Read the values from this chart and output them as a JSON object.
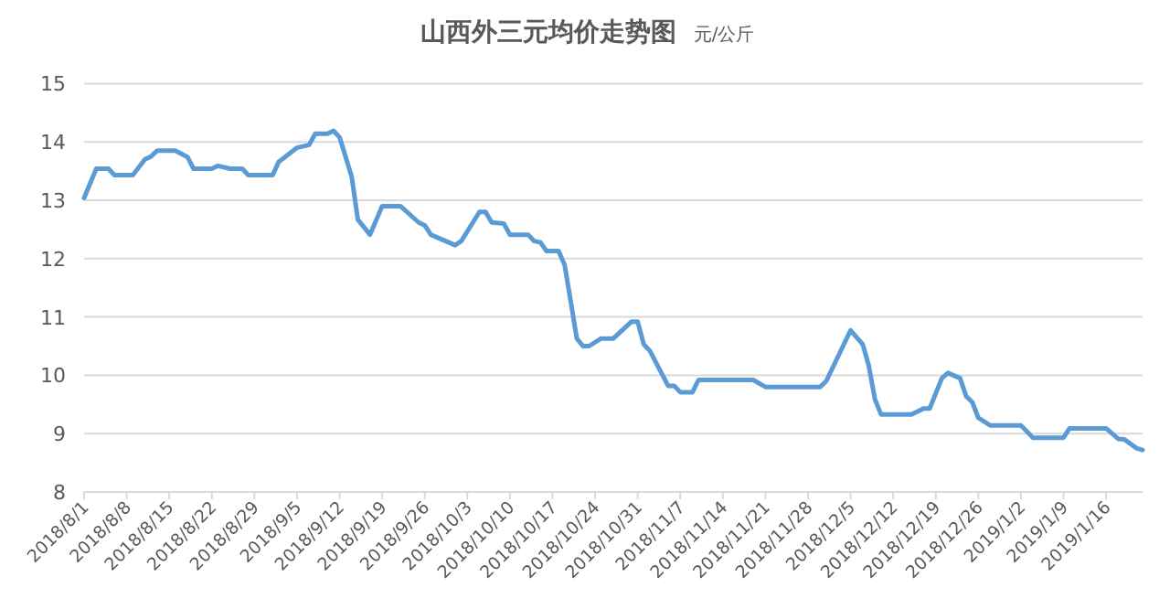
{
  "chart_data": {
    "type": "line",
    "title": "山西外三元均价走势图",
    "subtitle": "元/公斤",
    "color": "#5b9bd5",
    "grid": "y",
    "xlim": [
      "2018-08-01",
      "2019-01-22"
    ],
    "ylim": [
      8,
      15
    ],
    "yticks": [
      8,
      9,
      10,
      11,
      12,
      13,
      14,
      15
    ],
    "xticks": [
      {
        "value": "2018-08-01",
        "label": "2018/8/1"
      },
      {
        "value": "2018-08-08",
        "label": "2018/8/8"
      },
      {
        "value": "2018-08-15",
        "label": "2018/8/15"
      },
      {
        "value": "2018-08-22",
        "label": "2018/8/22"
      },
      {
        "value": "2018-08-29",
        "label": "2018/8/29"
      },
      {
        "value": "2018-09-05",
        "label": "2018/9/5"
      },
      {
        "value": "2018-09-12",
        "label": "2018/9/12"
      },
      {
        "value": "2018-09-19",
        "label": "2018/9/19"
      },
      {
        "value": "2018-09-26",
        "label": "2018/9/26"
      },
      {
        "value": "2018-10-03",
        "label": "2018/10/3"
      },
      {
        "value": "2018-10-10",
        "label": "2018/10/10"
      },
      {
        "value": "2018-10-17",
        "label": "2018/10/17"
      },
      {
        "value": "2018-10-24",
        "label": "2018/10/24"
      },
      {
        "value": "2018-10-31",
        "label": "2018/10/31"
      },
      {
        "value": "2018-11-07",
        "label": "2018/11/7"
      },
      {
        "value": "2018-11-14",
        "label": "2018/11/14"
      },
      {
        "value": "2018-11-21",
        "label": "2018/11/21"
      },
      {
        "value": "2018-11-28",
        "label": "2018/11/28"
      },
      {
        "value": "2018-12-05",
        "label": "2018/12/5"
      },
      {
        "value": "2018-12-12",
        "label": "2018/12/12"
      },
      {
        "value": "2018-12-19",
        "label": "2018/12/19"
      },
      {
        "value": "2018-12-26",
        "label": "2018/12/26"
      },
      {
        "value": "2019-01-02",
        "label": "2019/1/2"
      },
      {
        "value": "2019-01-09",
        "label": "2019/1/9"
      },
      {
        "value": "2019-01-16",
        "label": "2019/1/16"
      }
    ],
    "x": [
      "2018-08-01",
      "2018-08-03",
      "2018-08-05",
      "2018-08-06",
      "2018-08-09",
      "2018-08-11",
      "2018-08-12",
      "2018-08-13",
      "2018-08-16",
      "2018-08-18",
      "2018-08-19",
      "2018-08-22",
      "2018-08-23",
      "2018-08-25",
      "2018-08-27",
      "2018-08-28",
      "2018-09-01",
      "2018-09-02",
      "2018-09-05",
      "2018-09-07",
      "2018-09-08",
      "2018-09-10",
      "2018-09-11",
      "2018-09-12",
      "2018-09-14",
      "2018-09-15",
      "2018-09-17",
      "2018-09-19",
      "2018-09-22",
      "2018-09-25",
      "2018-09-26",
      "2018-09-27",
      "2018-10-01",
      "2018-10-02",
      "2018-10-05",
      "2018-10-06",
      "2018-10-07",
      "2018-10-09",
      "2018-10-10",
      "2018-10-13",
      "2018-10-14",
      "2018-10-15",
      "2018-10-16",
      "2018-10-18",
      "2018-10-19",
      "2018-10-21",
      "2018-10-22",
      "2018-10-23",
      "2018-10-25",
      "2018-10-27",
      "2018-10-30",
      "2018-10-31",
      "2018-11-01",
      "2018-11-02",
      "2018-11-05",
      "2018-11-06",
      "2018-11-07",
      "2018-11-09",
      "2018-11-10",
      "2018-11-19",
      "2018-11-21",
      "2018-11-30",
      "2018-12-01",
      "2018-12-05",
      "2018-12-07",
      "2018-12-08",
      "2018-12-09",
      "2018-12-10",
      "2018-12-15",
      "2018-12-17",
      "2018-12-18",
      "2018-12-20",
      "2018-12-21",
      "2018-12-23",
      "2018-12-24",
      "2018-12-25",
      "2018-12-26",
      "2018-12-28",
      "2019-01-02",
      "2019-01-04",
      "2019-01-09",
      "2019-01-10",
      "2019-01-16",
      "2019-01-18",
      "2019-01-19",
      "2019-01-21",
      "2019-01-22"
    ],
    "values": [
      13.04,
      13.54,
      13.54,
      13.43,
      13.43,
      13.7,
      13.75,
      13.85,
      13.85,
      13.74,
      13.54,
      13.54,
      13.59,
      13.54,
      13.54,
      13.43,
      13.43,
      13.66,
      13.9,
      13.95,
      14.14,
      14.14,
      14.19,
      14.08,
      13.4,
      12.67,
      12.41,
      12.9,
      12.9,
      12.62,
      12.57,
      12.41,
      12.23,
      12.3,
      12.8,
      12.8,
      12.62,
      12.6,
      12.41,
      12.41,
      12.3,
      12.28,
      12.13,
      12.13,
      11.89,
      10.63,
      10.5,
      10.5,
      10.63,
      10.63,
      10.92,
      10.92,
      10.53,
      10.42,
      9.82,
      9.82,
      9.71,
      9.71,
      9.92,
      9.92,
      9.8,
      9.8,
      9.9,
      10.77,
      10.53,
      10.16,
      9.59,
      9.33,
      9.33,
      9.43,
      9.43,
      9.95,
      10.04,
      9.95,
      9.64,
      9.54,
      9.27,
      9.14,
      9.14,
      8.93,
      8.93,
      9.09,
      9.09,
      8.91,
      8.9,
      8.75,
      8.72
    ]
  }
}
